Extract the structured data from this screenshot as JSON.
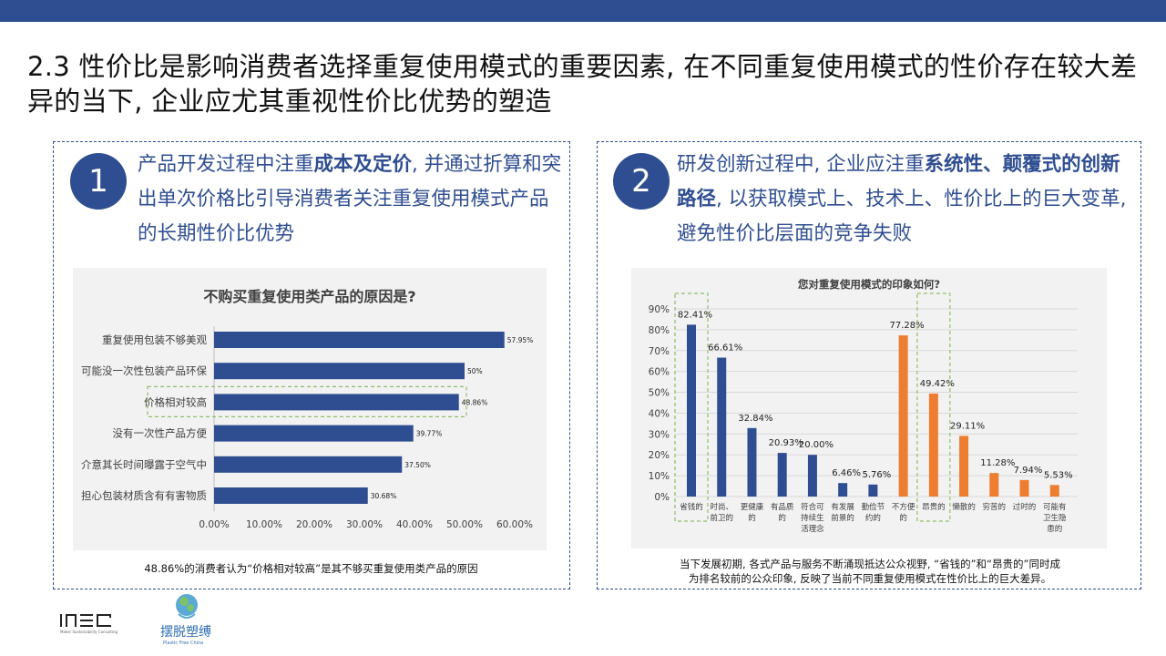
{
  "title": "2.3 性价比是影响消费者选择重复使用模式的重要因素, 在不同重复使用模式的性价存在较大差异的当下, 企业应尤其重视性价比优势的塑造",
  "panel1": {
    "number": "1",
    "text_pre": "产品开发过程中注重",
    "text_bold": "成本及定价",
    "text_post": ", 并通过折算和突出单次价格比引导消费者关注重复使用模式产品的长期性价比优势",
    "caption": "48.86%的消费者认为“价格相对较高”是其不够买重复使用类产品的原因"
  },
  "panel2": {
    "number": "2",
    "text_pre": "研发创新过程中, 企业应注重",
    "text_bold": "系统性、颠覆式的创新路径",
    "text_post": ", 以获取模式上、技术上、性价比上的巨大变革, 避免性价比层面的竞争失败",
    "caption_line1": "当下发展初期, 各式产品与服务不断涌现抵达公众视野, “省钱的”和“昂贵的”同时成",
    "caption_line2": "为排名较前的公众印象, 反映了当前不同重复使用模式在性价比上的巨大差异。"
  },
  "colors": {
    "blue": "#2f4e91",
    "orange": "#ed7d31",
    "highlight": "#8fbf6a"
  },
  "chart_data": [
    {
      "type": "bar",
      "orientation": "horizontal",
      "title": "不购买重复使用类产品的原因是?",
      "categories": [
        "重复使用包装不够美观",
        "可能没一次性包装产品环保",
        "价格相对较高",
        "没有一次性产品方便",
        "介意其长时间曝露于空气中",
        "担心包装材质含有有害物质"
      ],
      "values": [
        57.95,
        50,
        48.86,
        39.77,
        37.5,
        30.68
      ],
      "value_labels": [
        "57.95%",
        "50%",
        "48.86%",
        "39.77%",
        "37.50%",
        "30.68%"
      ],
      "xticks": [
        "0.00%",
        "10.00%",
        "20.00%",
        "30.00%",
        "40.00%",
        "50.00%",
        "60.00%"
      ],
      "xlim": [
        0,
        60
      ],
      "highlighted": "价格相对较高"
    },
    {
      "type": "bar",
      "title": "您对重复使用模式的印象如何?",
      "categories": [
        "省钱的",
        "时尚、前卫的",
        "更健康的",
        "有品质的",
        "符合可持续生活理念",
        "有发展前景的",
        "勤俭节约的",
        "不方便的",
        "昂贵的",
        "懒散的",
        "穷苦的",
        "过时的",
        "可能有卫生隐患的"
      ],
      "category_lines": [
        [
          "省钱的"
        ],
        [
          "时尚、",
          "前卫的"
        ],
        [
          "更健康",
          "的"
        ],
        [
          "有品质",
          "的"
        ],
        [
          "符合可",
          "持续生",
          "活理念"
        ],
        [
          "有发展",
          "前景的"
        ],
        [
          "勤俭节",
          "约的"
        ],
        [
          "不方便",
          "的"
        ],
        [
          "昂贵的"
        ],
        [
          "懒散的"
        ],
        [
          "穷苦的"
        ],
        [
          "过时的"
        ],
        [
          "可能有",
          "卫生隐",
          "患的"
        ]
      ],
      "values": [
        82.41,
        66.61,
        32.84,
        20.93,
        20.0,
        6.46,
        5.76,
        77.28,
        49.42,
        29.11,
        11.28,
        7.94,
        5.53
      ],
      "value_labels": [
        "82.41%",
        "66.61%",
        "32.84%",
        "20.93%",
        "20.00%",
        "6.46%",
        "5.76%",
        "77.28%",
        "49.42%",
        "29.11%",
        "11.28%",
        "7.94%",
        "5.53%"
      ],
      "bar_colors": [
        "#2f4e91",
        "#2f4e91",
        "#2f4e91",
        "#2f4e91",
        "#2f4e91",
        "#2f4e91",
        "#2f4e91",
        "#ed7d31",
        "#ed7d31",
        "#ed7d31",
        "#ed7d31",
        "#ed7d31",
        "#ed7d31"
      ],
      "yticks": [
        "0%",
        "10%",
        "20%",
        "30%",
        "40%",
        "50%",
        "60%",
        "70%",
        "80%",
        "90%"
      ],
      "ylim": [
        0,
        90
      ],
      "highlighted": [
        "省钱的",
        "昂贵的"
      ]
    }
  ]
}
